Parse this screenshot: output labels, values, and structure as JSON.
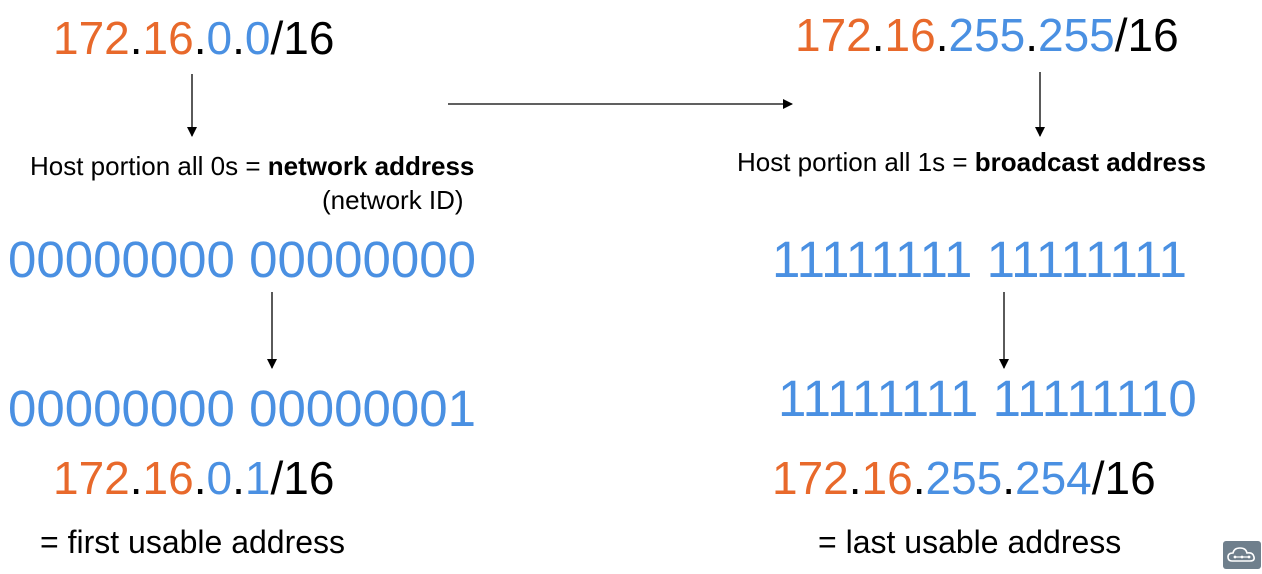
{
  "left": {
    "network_ip": {
      "o1": "172",
      "d1": ".",
      "o2": "16",
      "d2": ".",
      "b3": "0",
      "d3": ".",
      "b4": "0",
      "suffix": "/16"
    },
    "network_desc_prefix": "Host portion all 0s = ",
    "network_desc_bold": "network address",
    "network_desc_sub": "(network ID)",
    "binary_network": "00000000 00000000",
    "binary_first": "00000000 00000001",
    "first_ip": {
      "o1": "172",
      "d1": ".",
      "o2": "16",
      "d2": ".",
      "b3": "0",
      "d3": ".",
      "b4": "1",
      "suffix": "/16"
    },
    "first_desc": "= first usable address"
  },
  "right": {
    "broadcast_ip": {
      "o1": "172",
      "d1": ".",
      "o2": "16",
      "d2": ".",
      "b3": "255",
      "d3": ".",
      "b4": "255",
      "suffix": "/16"
    },
    "broadcast_desc_prefix": "Host portion all 1s = ",
    "broadcast_desc_bold": "broadcast address",
    "binary_broadcast": "11111111 11111111",
    "binary_last": "11111111 11111110",
    "last_ip": {
      "o1": "172",
      "d1": ".",
      "o2": "16",
      "d2": ".",
      "b3": "255",
      "d3": ".",
      "b4": "254",
      "suffix": "/16"
    },
    "last_desc": "= last usable address"
  },
  "colors": {
    "network_part": "#e8692b",
    "host_part": "#4a90e2",
    "text": "#000000"
  },
  "icons": {
    "logo": "cloud-logo-icon"
  }
}
